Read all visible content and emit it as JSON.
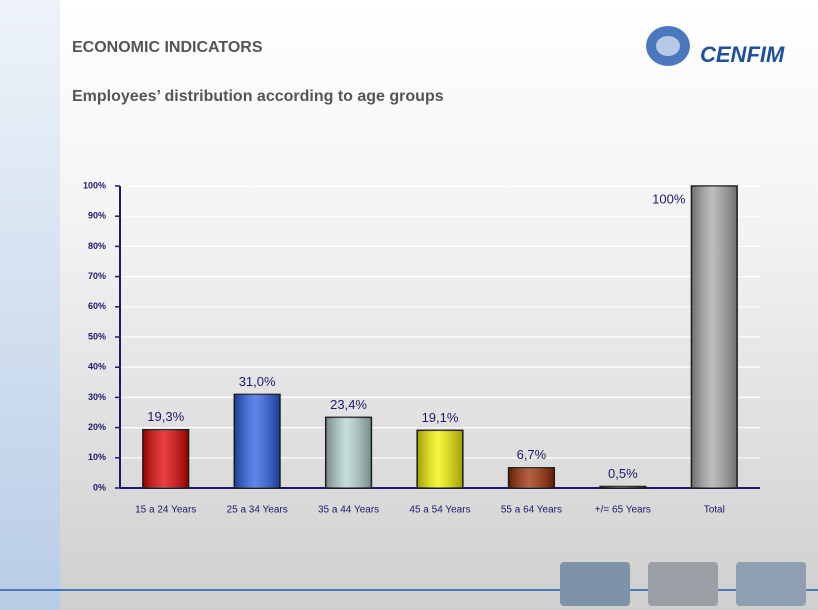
{
  "header": {
    "title": "ECONOMIC INDICATORS",
    "subtitle": "Employees’ distribution according to age groups",
    "logo": "CENFIM"
  },
  "chart_data": {
    "type": "bar",
    "categories": [
      "15 a 24 Years",
      "25 a 34 Years",
      "35 a 44 Years",
      "45 a 54 Years",
      "55 a 64 Years",
      "+/= 65 Years",
      "Total"
    ],
    "values": [
      19.3,
      31.0,
      23.4,
      19.1,
      6.7,
      0.5,
      100
    ],
    "value_labels": [
      "19,3%",
      "31,0%",
      "23,4%",
      "19,1%",
      "6,7%",
      "0,5%",
      "100%"
    ],
    "colors": [
      "#e00000",
      "#2a5ee8",
      "#b4d4d2",
      "#f4f400",
      "#9c2a00",
      "#7a0000",
      "#a8a8a8"
    ],
    "ylim": [
      0,
      100
    ],
    "yticks": [
      {
        "value": 0,
        "label": "0%"
      },
      {
        "value": 10,
        "label": "10%"
      },
      {
        "value": 20,
        "label": "20%"
      },
      {
        "value": 30,
        "label": "30%"
      },
      {
        "value": 40,
        "label": "40%"
      },
      {
        "value": 50,
        "label": "50%"
      },
      {
        "value": 60,
        "label": "60%"
      },
      {
        "value": 70,
        "label": "70%"
      },
      {
        "value": 80,
        "label": "80%"
      },
      {
        "value": 90,
        "label": "90%"
      },
      {
        "value": 100,
        "label": "100%"
      }
    ],
    "grid": true
  }
}
